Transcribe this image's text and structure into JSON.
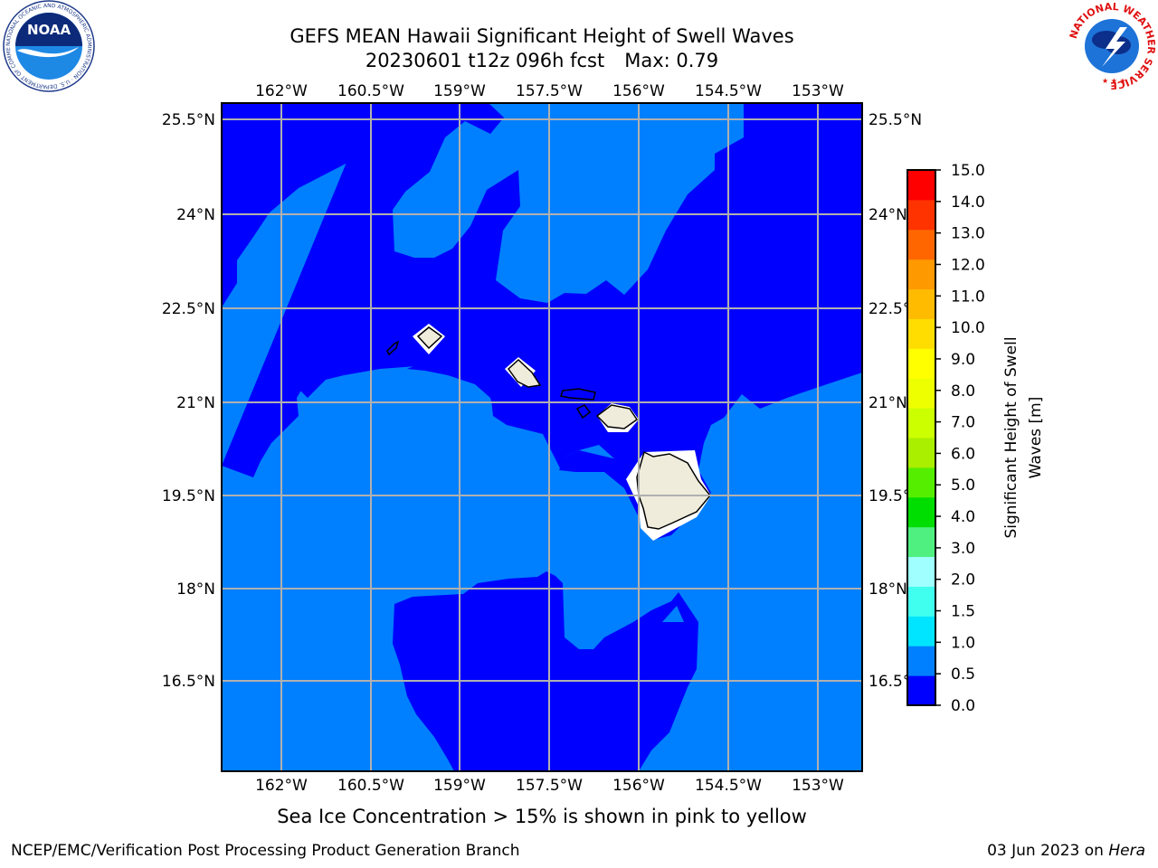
{
  "title": {
    "line1": "GEFS MEAN Hawaii Significant Height of Swell Waves",
    "line2_run": "20230601 t12z 096h fcst",
    "line2_max": "Max: 0.79"
  },
  "caption": "Sea Ice Concentration > 15% is shown in pink to yellow",
  "footer": {
    "left": "NCEP/EMC/Verification Post Processing Product Generation Branch",
    "right_date": "03 Jun 2023 on ",
    "right_host": "Hera"
  },
  "logos": {
    "noaa_text": "NOAA",
    "noaa_ring": "NATIONAL OCEANIC AND ATMOSPHERIC ADMINISTRATION · U.S. DEPARTMENT OF COMMERCE",
    "nws_ring": "NATIONAL WEATHER SERVICE"
  },
  "map": {
    "lon_ticks": [
      "162°W",
      "160.5°W",
      "159°W",
      "157.5°W",
      "156°W",
      "154.5°W",
      "153°W"
    ],
    "lat_ticks": [
      "25.5°N",
      "24°N",
      "22.5°N",
      "21°N",
      "19.5°N",
      "18°N",
      "16.5°N"
    ],
    "grid": true,
    "colors": {
      "swell_0_0p5": "#0000ff",
      "swell_0p5_1": "#0080ff",
      "land": "#efecdc",
      "grid": "#b0b0b0"
    }
  },
  "colorbar": {
    "label_line1": "Significant Height of Swell",
    "label_line2": "Waves [m]",
    "levels": [
      "0.0",
      "0.5",
      "1.0",
      "1.5",
      "2.0",
      "3.0",
      "4.0",
      "5.0",
      "6.0",
      "7.0",
      "8.0",
      "9.0",
      "10.0",
      "11.0",
      "12.0",
      "13.0",
      "14.0",
      "15.0"
    ],
    "colors": [
      "#0000ff",
      "#0080ff",
      "#00e5ff",
      "#40ffee",
      "#a0ffff",
      "#50f080",
      "#00dd00",
      "#55ee00",
      "#aaee00",
      "#ccff00",
      "#eeff00",
      "#ffff00",
      "#ffdd00",
      "#ffbb00",
      "#ff9900",
      "#ff6600",
      "#ff3300",
      "#ff0000"
    ]
  }
}
